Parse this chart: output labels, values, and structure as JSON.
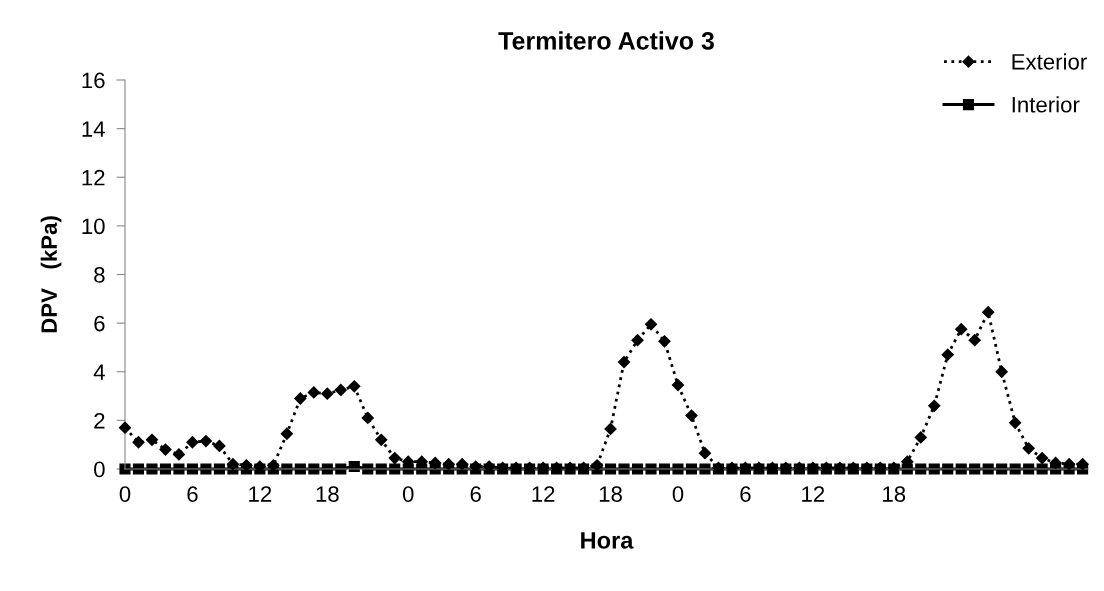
{
  "chart_data": {
    "type": "line",
    "title": "Termitero Activo 3",
    "xlabel": "Hora",
    "ylabel": "DPV   (kPa)",
    "categories": [
      "0",
      null,
      null,
      null,
      null,
      "6",
      null,
      null,
      null,
      null,
      "12",
      null,
      null,
      null,
      null,
      "18",
      null,
      null,
      null,
      null,
      null,
      "0",
      null,
      null,
      null,
      null,
      "6",
      null,
      null,
      null,
      null,
      "12",
      null,
      null,
      null,
      null,
      "18",
      null,
      null,
      null,
      null,
      "0",
      null,
      null,
      null,
      null,
      "6",
      null,
      null,
      null,
      null,
      "12",
      null,
      null,
      null,
      null,
      null,
      "18",
      null,
      null,
      null,
      null,
      null,
      null,
      null,
      null,
      null,
      null,
      null,
      null,
      null,
      null
    ],
    "series": [
      {
        "name": "Exterior",
        "color": "#000000",
        "marker": "diamond",
        "line_style": "dotted",
        "values": [
          1.7,
          1.1,
          1.2,
          0.8,
          0.6,
          1.1,
          1.15,
          0.95,
          0.2,
          0.15,
          0.1,
          0.15,
          1.45,
          2.9,
          3.15,
          3.1,
          3.25,
          3.4,
          2.1,
          1.2,
          0.45,
          0.3,
          0.3,
          0.25,
          0.2,
          0.2,
          0.1,
          0.1,
          0.05,
          0.05,
          0.05,
          0.05,
          0.05,
          0.05,
          0.05,
          0.15,
          1.65,
          4.4,
          5.3,
          5.95,
          5.25,
          3.45,
          2.2,
          0.65,
          0.05,
          0.05,
          0.05,
          0.05,
          0.05,
          0.05,
          0.05,
          0.05,
          0.05,
          0.05,
          0.05,
          0.05,
          0.05,
          0.05,
          0.3,
          1.3,
          2.6,
          4.7,
          5.75,
          5.3,
          6.45,
          4.0,
          1.9,
          0.85,
          0.45,
          0.25,
          0.2,
          0.2
        ]
      },
      {
        "name": "Interior",
        "color": "#000000",
        "marker": "square",
        "line_style": "solid",
        "values": [
          0,
          0,
          0,
          0,
          0,
          0,
          0,
          0,
          0,
          0,
          0,
          0,
          0,
          0,
          0,
          0,
          0,
          0.1,
          0,
          0,
          0,
          0,
          0,
          0,
          0,
          0,
          0,
          0,
          0,
          0,
          0,
          0,
          0,
          0,
          0,
          0,
          0,
          0,
          0,
          0,
          0,
          0,
          0,
          0,
          0,
          0,
          0,
          0,
          0,
          0,
          0,
          0,
          0,
          0,
          0,
          0,
          0,
          0,
          0,
          0,
          0,
          0,
          0,
          0,
          0,
          0,
          0,
          0,
          0,
          0,
          0,
          0
        ]
      }
    ],
    "ylim": [
      0,
      16
    ],
    "yticks": [
      0,
      2,
      4,
      6,
      8,
      10,
      12,
      14,
      16
    ],
    "grid": false,
    "legend": "top right"
  }
}
